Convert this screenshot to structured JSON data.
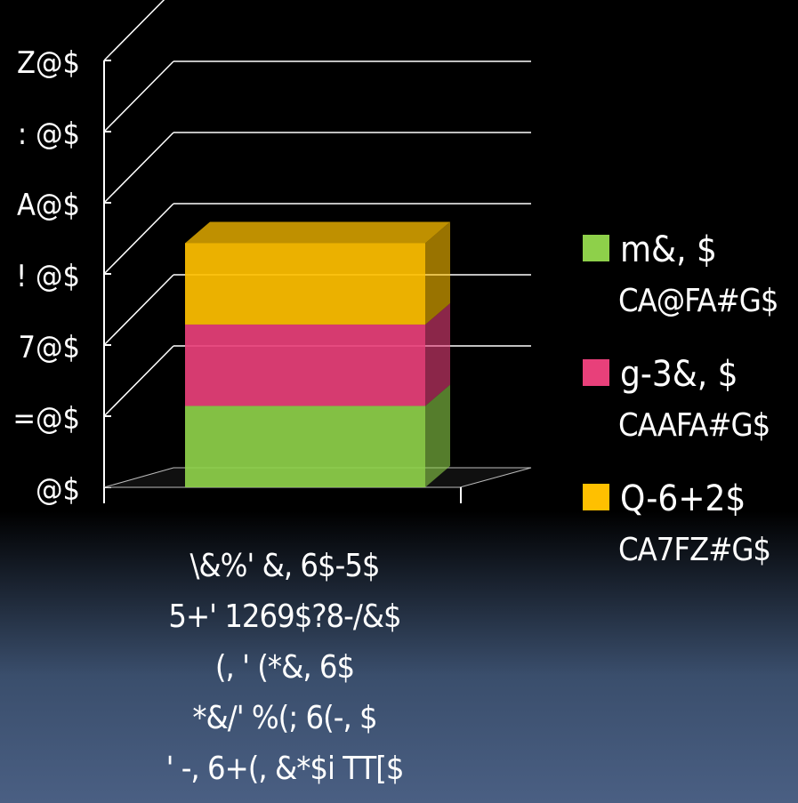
{
  "chart_data": {
    "type": "bar",
    "style": "3d-stacked-column",
    "y_tick_labels": [
      "Z@$",
      ": @$",
      "A@$",
      "! @$",
      "7@$",
      "=@$",
      "@$"
    ],
    "series": [
      {
        "name": "m&, $",
        "value_label": "CA@FA#G$",
        "color": "#8ed04a",
        "value": 57.2
      },
      {
        "name": "g-3&, $",
        "value_label": "CAAFA#G$",
        "color": "#e8407a",
        "value": 57.2
      },
      {
        "name": "Q-6+2$",
        "value_label": "CA7FZ#G$",
        "color": "#ffc000",
        "value": 57.2
      }
    ],
    "ylim": [
      0,
      300
    ],
    "grid": true,
    "legend_position": "right"
  },
  "caption": [
    "\\&%' &, 6$-5$",
    "5+' 1269$?8-/&$",
    "(, ' (*&, 6$",
    "*&/' %(; 6(-, $",
    "' -, 6+(, &*$i TT[$"
  ]
}
